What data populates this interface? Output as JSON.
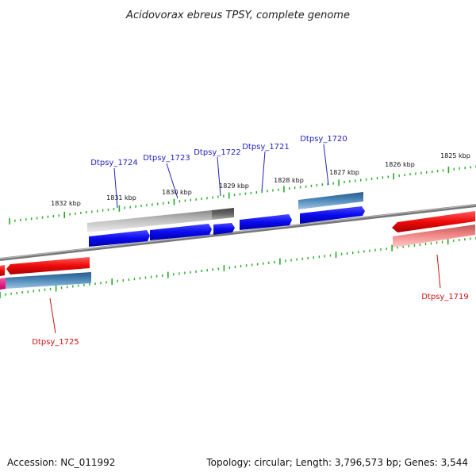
{
  "title": "Acidovorax ebreus TPSY, complete genome",
  "footer": {
    "accession": "Accession: NC_011992",
    "topology": "Topology: circular; Length: 3,796,573 bp; Genes: 3,544"
  },
  "scale_labels": [
    "1832 kbp",
    "1831 kbp",
    "1830 kbp",
    "1829 kbp",
    "1828 kbp",
    "1827 kbp",
    "1826 kbp",
    "1825 kbp"
  ],
  "genes_top": [
    "Dtpsy_1724",
    "Dtpsy_1723",
    "Dtpsy_1722",
    "Dtpsy_1721",
    "Dtpsy_1720"
  ],
  "genes_bottom": [
    "Dtpsy_1725",
    "Dtpsy_1719"
  ],
  "colors": {
    "cds_forward": "#0a0aee",
    "cds_reverse": "#ee0a0a",
    "pseudo_light": "#bbbbbb",
    "pseudo_dark": "#666666",
    "feature_steel": "#4682b4",
    "feature_pink": "#f08080",
    "feature_magenta": "#ee1188",
    "tick": "#22aa22",
    "backbone": "#888888"
  }
}
